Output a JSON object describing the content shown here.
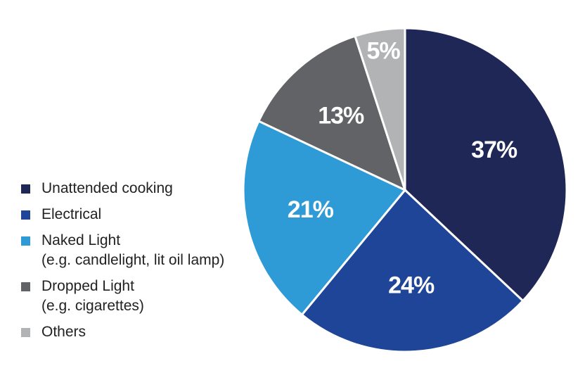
{
  "chart_data": {
    "type": "pie",
    "categories": [
      "Unattended cooking",
      "Electrical",
      "Naked Light\n(e.g. candlelight, lit oil lamp)",
      "Dropped Light\n(e.g. cigarettes)",
      "Others"
    ],
    "values": [
      37,
      24,
      21,
      13,
      5
    ],
    "value_labels": [
      "37%",
      "24%",
      "21%",
      "13%",
      "5%"
    ],
    "colors": [
      "#1f2756",
      "#1e4598",
      "#2e9ad6",
      "#626366",
      "#b2b3b5"
    ],
    "legend": "left"
  }
}
